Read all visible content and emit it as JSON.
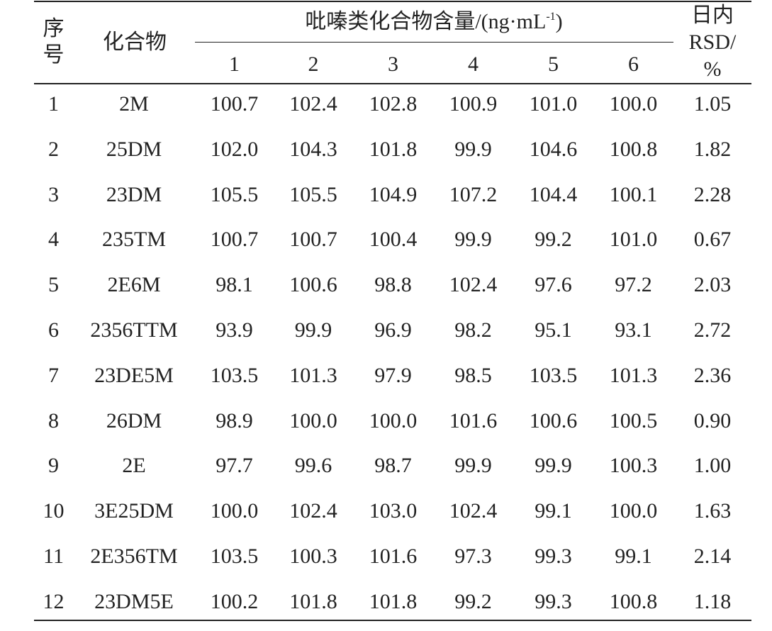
{
  "table": {
    "header": {
      "index": [
        "序",
        "号"
      ],
      "compound": "化合物",
      "group": {
        "text": "吡嗪类化合物含量/(ng·mL",
        "sup": "-1",
        "tail": ")"
      },
      "runs": [
        "1",
        "2",
        "3",
        "4",
        "5",
        "6"
      ],
      "rsd": [
        "日内",
        "RSD/",
        "%"
      ]
    },
    "rows": [
      [
        "1",
        "2M",
        "100.7",
        "102.4",
        "102.8",
        "100.9",
        "101.0",
        "100.0",
        "1.05"
      ],
      [
        "2",
        "25DM",
        "102.0",
        "104.3",
        "101.8",
        "99.9",
        "104.6",
        "100.8",
        "1.82"
      ],
      [
        "3",
        "23DM",
        "105.5",
        "105.5",
        "104.9",
        "107.2",
        "104.4",
        "100.1",
        "2.28"
      ],
      [
        "4",
        "235TM",
        "100.7",
        "100.7",
        "100.4",
        "99.9",
        "99.2",
        "101.0",
        "0.67"
      ],
      [
        "5",
        "2E6M",
        "98.1",
        "100.6",
        "98.8",
        "102.4",
        "97.6",
        "97.2",
        "2.03"
      ],
      [
        "6",
        "2356TTM",
        "93.9",
        "99.9",
        "96.9",
        "98.2",
        "95.1",
        "93.1",
        "2.72"
      ],
      [
        "7",
        "23DE5M",
        "103.5",
        "101.3",
        "97.9",
        "98.5",
        "103.5",
        "101.3",
        "2.36"
      ],
      [
        "8",
        "26DM",
        "98.9",
        "100.0",
        "100.0",
        "101.6",
        "100.6",
        "100.5",
        "0.90"
      ],
      [
        "9",
        "2E",
        "97.7",
        "99.6",
        "98.7",
        "99.9",
        "99.9",
        "100.3",
        "1.00"
      ],
      [
        "10",
        "3E25DM",
        "100.0",
        "102.4",
        "103.0",
        "102.4",
        "99.1",
        "100.0",
        "1.63"
      ],
      [
        "11",
        "2E356TM",
        "103.5",
        "100.3",
        "101.6",
        "97.3",
        "99.3",
        "99.1",
        "2.14"
      ],
      [
        "12",
        "23DM5E",
        "100.2",
        "101.8",
        "101.8",
        "99.2",
        "99.3",
        "100.8",
        "1.18"
      ]
    ]
  }
}
